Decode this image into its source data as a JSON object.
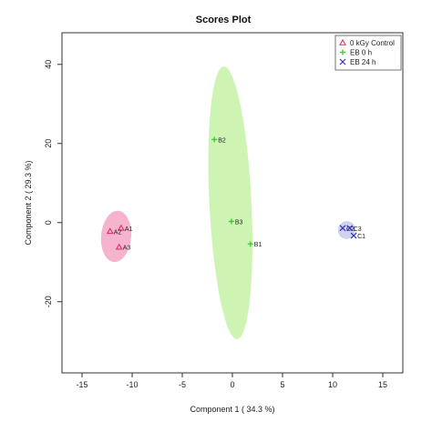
{
  "chart_data": {
    "type": "scatter",
    "title": "Scores Plot",
    "xlabel": "Component 1 ( 34.3 %)",
    "ylabel": "Component 2 ( 29.3 %)",
    "xlim": [
      -17,
      17
    ],
    "ylim": [
      -38,
      48
    ],
    "xticks": [
      -15,
      -10,
      -5,
      0,
      5,
      10,
      15
    ],
    "yticks": [
      -20,
      0,
      20,
      40
    ],
    "xtick_labels": [
      "-15",
      "-10",
      "-5",
      "0",
      "5",
      "10",
      "15"
    ],
    "ytick_labels": [
      "-20",
      "0",
      "20",
      "40"
    ],
    "grid": false,
    "legend": {
      "placement": "top-right",
      "entries": [
        {
          "label": "0 kGy Control",
          "marker": "triangle",
          "color": "#e0306a"
        },
        {
          "label": "EB 0 h",
          "marker": "plus",
          "color": "#33cc33"
        },
        {
          "label": "EB 24 h",
          "marker": "x",
          "color": "#3333bb"
        }
      ]
    },
    "series": [
      {
        "name": "0 kGy Control",
        "marker": "triangle",
        "color": "#e0306a",
        "ellipse_color": "#f4a6c6",
        "ellipse": {
          "cx": -11.6,
          "cy": -3.5,
          "rx": 1.5,
          "ry": 6.5,
          "angle_deg": 5
        },
        "points": [
          {
            "label": "A1",
            "x": -11.1,
            "y": -1.4
          },
          {
            "label": "A2",
            "x": -12.2,
            "y": -2.2
          },
          {
            "label": "A3",
            "x": -11.3,
            "y": -6.2
          }
        ]
      },
      {
        "name": "EB 0 h",
        "marker": "plus",
        "color": "#33cc33",
        "ellipse_color": "#c6f2a6",
        "ellipse": {
          "cx": -0.2,
          "cy": 5.0,
          "rx": 2.1,
          "ry": 34.5,
          "angle_deg": -2.8
        },
        "points": [
          {
            "label": "B2",
            "x": -1.8,
            "y": 21.0
          },
          {
            "label": "B3",
            "x": -0.1,
            "y": 0.3
          },
          {
            "label": "B1",
            "x": 1.8,
            "y": -5.4
          }
        ]
      },
      {
        "name": "EB 24 h",
        "marker": "x",
        "color": "#3333bb",
        "ellipse_color": "#c9c9f0",
        "ellipse": {
          "cx": 11.4,
          "cy": -1.9,
          "rx": 0.9,
          "ry": 2.2,
          "angle_deg": -70
        },
        "points": [
          {
            "label": "C2",
            "x": 11.0,
            "y": -1.4
          },
          {
            "label": "C3",
            "x": 11.7,
            "y": -1.4
          },
          {
            "label": "C1",
            "x": 12.1,
            "y": -3.3
          }
        ]
      }
    ]
  }
}
